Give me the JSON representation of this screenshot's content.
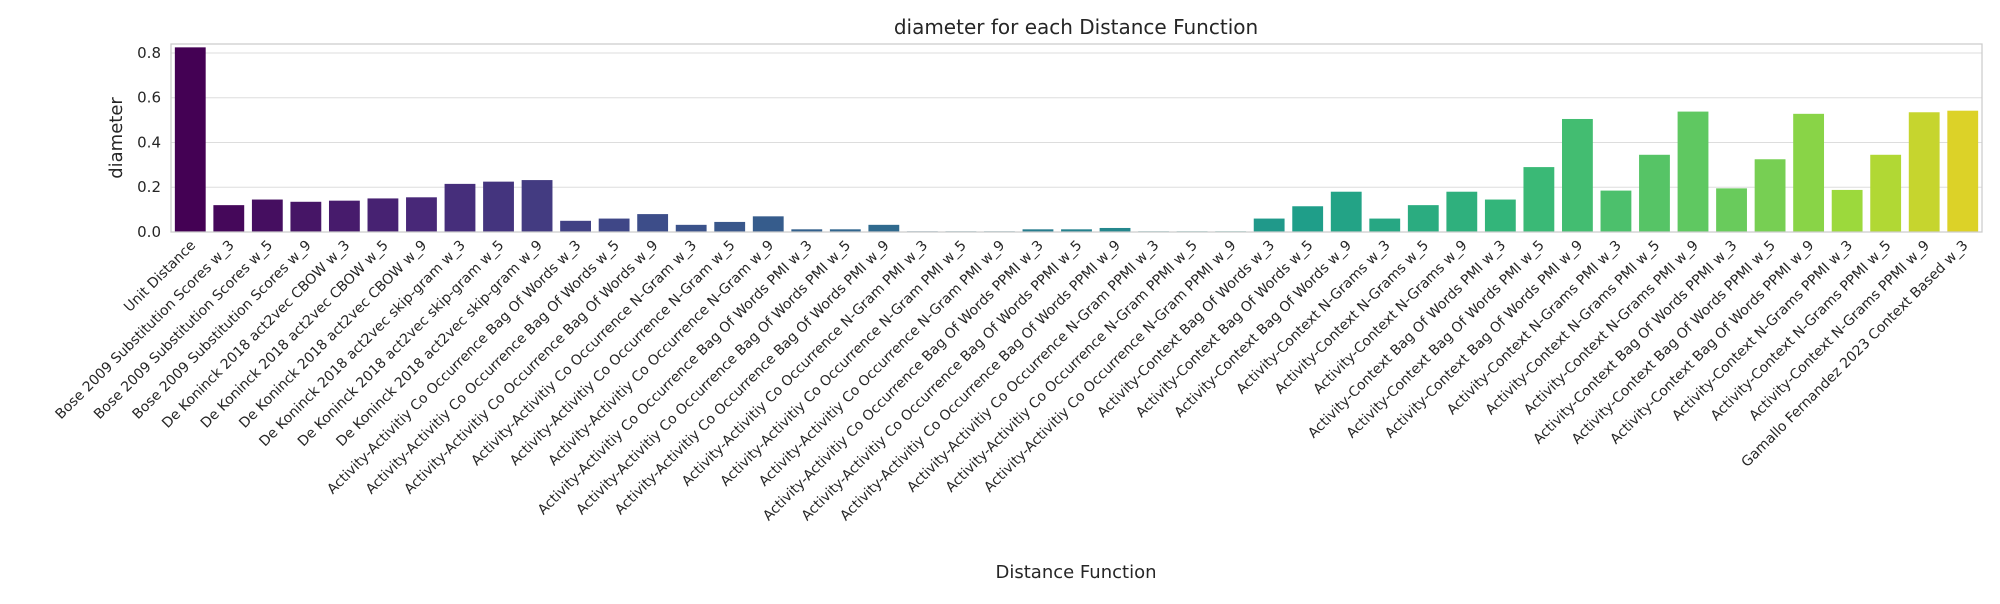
{
  "chart_data": {
    "type": "bar",
    "title": "diameter for each Distance Function",
    "xlabel": "Distance Function",
    "ylabel": "diameter",
    "ylim": [
      0,
      0.84
    ],
    "yticks": [
      "0.0",
      "0.2",
      "0.4",
      "0.6",
      "0.8"
    ],
    "grid": true,
    "palette": "viridis",
    "categories": [
      "Unit Distance",
      "Bose 2009 Substitution Scores w_3",
      "Bose 2009 Substitution Scores w_5",
      "Bose 2009 Substitution Scores w_9",
      "De Koninck 2018 act2vec CBOW w_3",
      "De Koninck 2018 act2vec CBOW w_5",
      "De Koninck 2018 act2vec CBOW w_9",
      "De Koninck 2018 act2vec skip-gram w_3",
      "De Koninck 2018 act2vec skip-gram w_5",
      "De Koninck 2018 act2vec skip-gram w_9",
      "Activity-Activitiy Co Occurrence Bag Of Words w_3",
      "Activity-Activitiy Co Occurrence Bag Of Words w_5",
      "Activity-Activitiy Co Occurrence Bag Of Words w_9",
      "Activity-Activitiy Co Occurrence N-Gram w_3",
      "Activity-Activitiy Co Occurrence N-Gram w_5",
      "Activity-Activitiy Co Occurrence N-Gram w_9",
      "Activity-Activitiy Co Occurrence Bag Of Words PMI w_3",
      "Activity-Activitiy Co Occurrence Bag Of Words PMI w_5",
      "Activity-Activitiy Co Occurrence Bag Of Words PMI w_9",
      "Activity-Activitiy Co Occurrence N-Gram PMI w_3",
      "Activity-Activitiy Co Occurrence N-Gram PMI w_5",
      "Activity-Activitiy Co Occurrence N-Gram PMI w_9",
      "Activity-Activitiy Co Occurrence Bag Of Words PPMI w_3",
      "Activity-Activitiy Co Occurrence Bag Of Words PPMI w_5",
      "Activity-Activitiy Co Occurrence Bag Of Words PPMI w_9",
      "Activity-Activitiy Co Occurrence N-Gram PPMI w_3",
      "Activity-Activitiy Co Occurrence N-Gram PPMI w_5",
      "Activity-Activitiy Co Occurrence N-Gram PPMI w_9",
      "Activity-Context Bag Of Words w_3",
      "Activity-Context Bag Of Words w_5",
      "Activity-Context Bag Of Words w_9",
      "Activity-Context N-Grams w_3",
      "Activity-Context N-Grams w_5",
      "Activity-Context N-Grams w_9",
      "Activity-Context Bag Of Words PMI w_3",
      "Activity-Context Bag Of Words PMI w_5",
      "Activity-Context Bag Of Words PMI w_9",
      "Activity-Context N-Grams PMI w_3",
      "Activity-Context N-Grams PMI w_5",
      "Activity-Context N-Grams PMI w_9",
      "Activity-Context Bag Of Words PPMI w_3",
      "Activity-Context Bag Of Words PPMI w_5",
      "Activity-Context Bag Of Words PPMI w_9",
      "Activity-Context N-Grams PPMI w_3",
      "Activity-Context N-Grams PPMI w_5",
      "Activity-Context N-Grams PPMI w_9",
      "Gamallo Fernandez 2023 Context Based w_3"
    ],
    "values": [
      0.825,
      0.12,
      0.145,
      0.135,
      0.14,
      0.15,
      0.155,
      0.215,
      0.225,
      0.232,
      0.05,
      0.06,
      0.08,
      0.032,
      0.045,
      0.07,
      0.012,
      0.012,
      0.032,
      0.003,
      0.003,
      0.003,
      0.012,
      0.012,
      0.018,
      0.003,
      0.003,
      0.003,
      0.06,
      0.115,
      0.18,
      0.06,
      0.12,
      0.18,
      0.145,
      0.29,
      0.505,
      0.185,
      0.345,
      0.538,
      0.195,
      0.325,
      0.528,
      0.188,
      0.345,
      0.535,
      0.542
    ]
  }
}
